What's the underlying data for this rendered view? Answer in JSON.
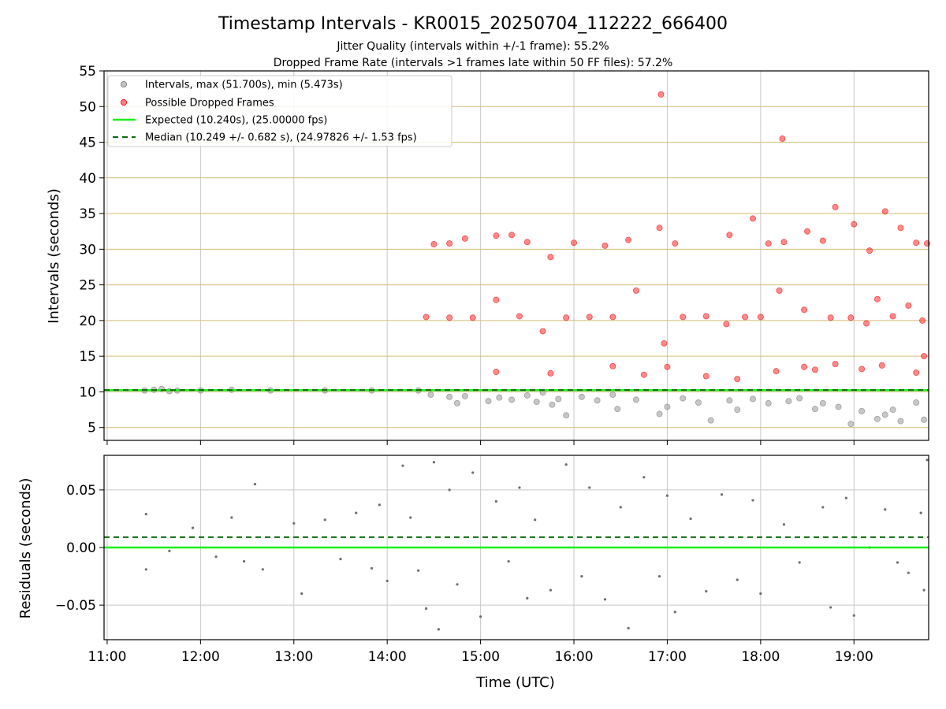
{
  "chart_data": [
    {
      "type": "scatter",
      "title": "Timestamp Intervals - KR0015_20250704_112222_666400",
      "subtitle_lines": [
        "Jitter Quality (intervals within +/-1 frame): 55.2%",
        "Dropped Frame Rate (intervals >1 frames late within 50 FF files): 57.2%"
      ],
      "ylabel": "Intervals (seconds)",
      "ylim": [
        3.2,
        55
      ],
      "xlim": [
        "10:58",
        "19:48"
      ],
      "yticks": [
        5,
        10,
        15,
        20,
        25,
        30,
        35,
        40,
        45,
        50,
        55
      ],
      "xticks": [
        "11:00",
        "12:00",
        "13:00",
        "14:00",
        "15:00",
        "16:00",
        "17:00",
        "18:00",
        "19:00"
      ],
      "grid": true,
      "legend_position": "upper-left",
      "legend": [
        "Intervals, max (51.700s), min (5.473s)",
        "Possible Dropped Frames",
        "Expected (10.240s), (25.00000 fps)",
        "Median (10.249 +/- 0.682 s), (24.97826 +/- 1.53 fps)"
      ],
      "expected_line": 10.24,
      "median_line": 10.249,
      "series": [
        {
          "name": "Intervals, max (51.700s), min (5.473s)",
          "points": [
            [
              "11:24",
              10.2
            ],
            [
              "11:30",
              10.3
            ],
            [
              "11:35",
              10.4
            ],
            [
              "11:40",
              10.1
            ],
            [
              "11:45",
              10.2
            ],
            [
              "12:00",
              10.2
            ],
            [
              "12:20",
              10.3
            ],
            [
              "12:45",
              10.2
            ],
            [
              "13:20",
              10.2
            ],
            [
              "13:50",
              10.2
            ],
            [
              "14:20",
              10.2
            ],
            [
              "14:28",
              9.6
            ],
            [
              "14:40",
              9.3
            ],
            [
              "14:45",
              8.4
            ],
            [
              "14:50",
              9.4
            ],
            [
              "15:05",
              8.7
            ],
            [
              "15:12",
              9.2
            ],
            [
              "15:20",
              8.9
            ],
            [
              "15:30",
              9.5
            ],
            [
              "15:36",
              8.6
            ],
            [
              "15:40",
              9.9
            ],
            [
              "15:46",
              8.2
            ],
            [
              "15:50",
              9.0
            ],
            [
              "15:55",
              6.7
            ],
            [
              "16:05",
              9.3
            ],
            [
              "16:15",
              8.8
            ],
            [
              "16:25",
              9.6
            ],
            [
              "16:28",
              7.6
            ],
            [
              "16:40",
              8.9
            ],
            [
              "16:55",
              6.9
            ],
            [
              "17:00",
              7.9
            ],
            [
              "17:10",
              9.1
            ],
            [
              "17:20",
              8.5
            ],
            [
              "17:28",
              6.0
            ],
            [
              "17:40",
              8.8
            ],
            [
              "17:45",
              7.5
            ],
            [
              "17:55",
              9.0
            ],
            [
              "18:05",
              8.4
            ],
            [
              "18:18",
              8.7
            ],
            [
              "18:25",
              9.1
            ],
            [
              "18:35",
              7.6
            ],
            [
              "18:40",
              8.4
            ],
            [
              "18:50",
              7.9
            ],
            [
              "18:58",
              5.5
            ],
            [
              "19:05",
              7.3
            ],
            [
              "19:15",
              6.2
            ],
            [
              "19:20",
              6.8
            ],
            [
              "19:25",
              7.5
            ],
            [
              "19:30",
              5.9
            ],
            [
              "19:40",
              8.5
            ],
            [
              "19:45",
              6.1
            ]
          ]
        },
        {
          "name": "Possible Dropped Frames",
          "points": [
            [
              "16:56",
              51.7
            ],
            [
              "18:14",
              45.5
            ],
            [
              "14:30",
              30.7
            ],
            [
              "14:40",
              30.8
            ],
            [
              "14:50",
              31.5
            ],
            [
              "15:10",
              31.9
            ],
            [
              "15:20",
              32.0
            ],
            [
              "15:30",
              31.0
            ],
            [
              "15:45",
              28.9
            ],
            [
              "16:00",
              30.9
            ],
            [
              "16:20",
              30.5
            ],
            [
              "16:35",
              31.3
            ],
            [
              "16:55",
              33.0
            ],
            [
              "17:05",
              30.8
            ],
            [
              "17:40",
              32.0
            ],
            [
              "17:55",
              34.3
            ],
            [
              "18:05",
              30.8
            ],
            [
              "18:15",
              31.0
            ],
            [
              "18:30",
              32.5
            ],
            [
              "18:40",
              31.2
            ],
            [
              "18:48",
              35.9
            ],
            [
              "19:00",
              33.5
            ],
            [
              "19:10",
              29.8
            ],
            [
              "19:20",
              35.3
            ],
            [
              "19:30",
              33.0
            ],
            [
              "19:40",
              30.9
            ],
            [
              "19:47",
              30.8
            ],
            [
              "14:25",
              20.5
            ],
            [
              "14:40",
              20.4
            ],
            [
              "14:55",
              20.4
            ],
            [
              "15:10",
              22.9
            ],
            [
              "15:25",
              20.6
            ],
            [
              "15:40",
              18.5
            ],
            [
              "15:55",
              20.4
            ],
            [
              "16:10",
              20.5
            ],
            [
              "16:25",
              20.5
            ],
            [
              "16:40",
              24.2
            ],
            [
              "16:58",
              16.8
            ],
            [
              "17:10",
              20.5
            ],
            [
              "17:25",
              20.6
            ],
            [
              "17:38",
              19.5
            ],
            [
              "17:50",
              20.5
            ],
            [
              "18:00",
              20.5
            ],
            [
              "18:12",
              24.2
            ],
            [
              "18:28",
              21.5
            ],
            [
              "18:35",
              13.1
            ],
            [
              "18:45",
              20.4
            ],
            [
              "18:58",
              20.4
            ],
            [
              "19:08",
              19.6
            ],
            [
              "19:15",
              23.0
            ],
            [
              "19:25",
              20.6
            ],
            [
              "19:35",
              22.1
            ],
            [
              "19:44",
              20.0
            ],
            [
              "15:10",
              12.8
            ],
            [
              "15:45",
              12.6
            ],
            [
              "16:25",
              13.6
            ],
            [
              "16:45",
              12.4
            ],
            [
              "17:00",
              13.5
            ],
            [
              "17:25",
              12.2
            ],
            [
              "17:45",
              11.8
            ],
            [
              "18:10",
              12.9
            ],
            [
              "18:28",
              13.5
            ],
            [
              "18:48",
              13.9
            ],
            [
              "19:05",
              13.2
            ],
            [
              "19:18",
              13.7
            ],
            [
              "19:40",
              12.7
            ],
            [
              "19:45",
              15.0
            ]
          ]
        }
      ]
    },
    {
      "type": "scatter",
      "ylabel": "Residuals (seconds)",
      "xlabel": "Time (UTC)",
      "ylim": [
        -0.08,
        0.08
      ],
      "yticks": [
        "0.05",
        "0.00",
        "−0.05"
      ],
      "ytick_values": [
        0.05,
        0.0,
        -0.05
      ],
      "xlim": [
        "10:58",
        "19:48"
      ],
      "xticks": [
        "11:00",
        "12:00",
        "13:00",
        "14:00",
        "15:00",
        "16:00",
        "17:00",
        "18:00",
        "19:00"
      ],
      "expected_line": 0.0,
      "median_line": 0.009,
      "series": [
        {
          "name": "Residuals",
          "points": [
            [
              "11:25",
              0.029
            ],
            [
              "11:25",
              -0.019
            ],
            [
              "11:40",
              -0.003
            ],
            [
              "11:55",
              0.017
            ],
            [
              "12:10",
              -0.008
            ],
            [
              "12:20",
              0.026
            ],
            [
              "12:28",
              -0.012
            ],
            [
              "12:35",
              0.055
            ],
            [
              "12:40",
              -0.019
            ],
            [
              "13:00",
              0.021
            ],
            [
              "13:05",
              -0.04
            ],
            [
              "13:20",
              0.024
            ],
            [
              "13:30",
              -0.01
            ],
            [
              "13:40",
              0.03
            ],
            [
              "13:50",
              -0.018
            ],
            [
              "13:55",
              0.037
            ],
            [
              "14:00",
              -0.029
            ],
            [
              "14:10",
              0.071
            ],
            [
              "14:15",
              0.026
            ],
            [
              "14:20",
              -0.02
            ],
            [
              "14:25",
              -0.053
            ],
            [
              "14:30",
              0.074
            ],
            [
              "14:33",
              -0.071
            ],
            [
              "14:40",
              0.05
            ],
            [
              "14:45",
              -0.032
            ],
            [
              "14:55",
              0.065
            ],
            [
              "15:00",
              -0.06
            ],
            [
              "15:10",
              0.04
            ],
            [
              "15:18",
              -0.012
            ],
            [
              "15:25",
              0.052
            ],
            [
              "15:30",
              -0.044
            ],
            [
              "15:35",
              0.024
            ],
            [
              "15:45",
              -0.037
            ],
            [
              "15:55",
              0.072
            ],
            [
              "16:05",
              -0.025
            ],
            [
              "16:10",
              0.052
            ],
            [
              "16:20",
              -0.045
            ],
            [
              "16:30",
              0.035
            ],
            [
              "16:35",
              -0.07
            ],
            [
              "16:45",
              0.061
            ],
            [
              "16:55",
              -0.025
            ],
            [
              "17:00",
              0.045
            ],
            [
              "17:05",
              -0.056
            ],
            [
              "17:15",
              0.025
            ],
            [
              "17:25",
              -0.038
            ],
            [
              "17:35",
              0.046
            ],
            [
              "17:45",
              -0.028
            ],
            [
              "17:55",
              0.041
            ],
            [
              "18:00",
              -0.04
            ],
            [
              "18:15",
              0.02
            ],
            [
              "18:25",
              -0.013
            ],
            [
              "18:40",
              0.035
            ],
            [
              "18:45",
              -0.052
            ],
            [
              "18:55",
              0.043
            ],
            [
              "19:00",
              -0.059
            ],
            [
              "19:10",
              0.0
            ],
            [
              "19:20",
              0.033
            ],
            [
              "19:28",
              -0.013
            ],
            [
              "19:35",
              -0.022
            ],
            [
              "19:43",
              0.03
            ],
            [
              "19:45",
              -0.037
            ],
            [
              "19:47",
              0.076
            ]
          ]
        }
      ]
    }
  ],
  "colors": {
    "intervals": "#999999",
    "dropped": "#ff2a2a",
    "expected": "#1aef1a",
    "median": "#0b6b0b",
    "hgrid": "#d4bc7a",
    "vgrid": "#c8c8c8",
    "residual": "#6e6e6e"
  }
}
